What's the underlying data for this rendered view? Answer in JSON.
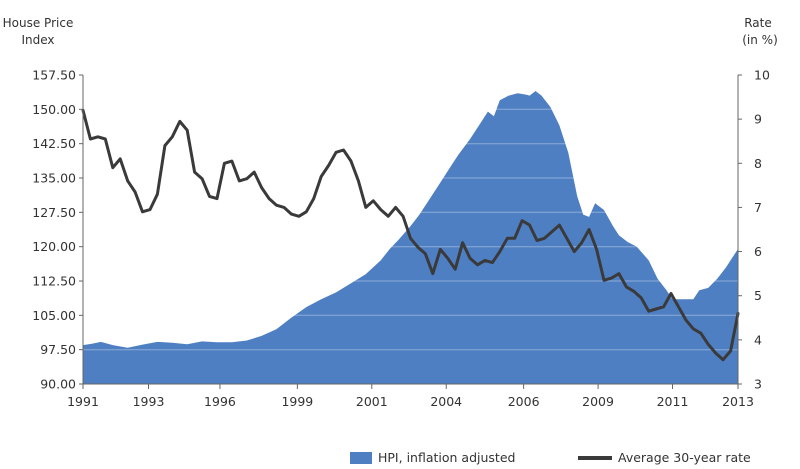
{
  "chart_data": {
    "type": "area-line-combo",
    "title": "",
    "left_axis": {
      "title_line1": "House Price",
      "title_line2": "Index",
      "ylim": [
        90,
        157.5
      ],
      "ticks": [
        "157.50",
        "150.00",
        "142.50",
        "135.00",
        "127.50",
        "120.00",
        "112.50",
        "105.00",
        "97.50",
        "90.00"
      ]
    },
    "right_axis": {
      "title_line1": "Rate",
      "title_line2": "(in %)",
      "ylim": [
        3,
        10
      ],
      "ticks": [
        "10",
        "9",
        "8",
        "7",
        "6",
        "5",
        "4",
        "3"
      ]
    },
    "x_axis": {
      "xlim": [
        1991,
        2013
      ],
      "ticks": [
        {
          "label": "1991",
          "value": 1991
        },
        {
          "label": "1993",
          "value": 1993.2
        },
        {
          "label": "1996",
          "value": 1995.6
        },
        {
          "label": "1999",
          "value": 1998.2
        },
        {
          "label": "2001",
          "value": 2000.7
        },
        {
          "label": "2004",
          "value": 2003.2
        },
        {
          "label": "2006",
          "value": 2005.8
        },
        {
          "label": "2009",
          "value": 2008.3
        },
        {
          "label": "2011",
          "value": 2010.8
        },
        {
          "label": "2013",
          "value": 2013
        }
      ]
    },
    "series": [
      {
        "name": "HPI, inflation adjusted",
        "kind": "area",
        "axis": "left",
        "color": "#4f7fc3",
        "x": [
          1991,
          1991.3,
          1991.6,
          1992,
          1992.5,
          1993,
          1993.5,
          1994,
          1994.5,
          1995,
          1995.5,
          1996,
          1996.5,
          1997,
          1997.5,
          1998,
          1998.5,
          1999,
          1999.5,
          2000,
          2000.5,
          2001,
          2001.3,
          2001.6,
          2002,
          2002.3,
          2002.6,
          2003,
          2003.3,
          2003.6,
          2004,
          2004.3,
          2004.6,
          2004.8,
          2005,
          2005.3,
          2005.6,
          2005.9,
          2006,
          2006.2,
          2006.4,
          2006.7,
          2007,
          2007.3,
          2007.6,
          2007.8,
          2008,
          2008.2,
          2008.5,
          2008.8,
          2009,
          2009.3,
          2009.6,
          2010,
          2010.3,
          2010.6,
          2010.8,
          2011.2,
          2011.5,
          2011.7,
          2012,
          2012.3,
          2012.6,
          2012.8,
          2013
        ],
        "values": [
          98.5,
          98.8,
          99.2,
          98.5,
          97.9,
          98.6,
          99.2,
          99.0,
          98.7,
          99.3,
          99.1,
          99.1,
          99.5,
          100.5,
          102.0,
          104.5,
          106.8,
          108.5,
          110.0,
          112.0,
          114.0,
          117.0,
          119.5,
          121.5,
          124.5,
          127.0,
          130.0,
          134.0,
          137.0,
          140.0,
          143.5,
          146.5,
          149.5,
          148.5,
          152.0,
          153.0,
          153.5,
          153.2,
          153.0,
          154.0,
          153.0,
          150.5,
          146.5,
          140.5,
          131.0,
          127.0,
          126.5,
          129.5,
          128.0,
          124.5,
          122.5,
          121.0,
          120.0,
          117.0,
          113.0,
          110.5,
          108.5,
          108.5,
          108.5,
          110.5,
          111.0,
          113.0,
          115.5,
          117.5,
          119.5
        ]
      },
      {
        "name": "Average 30-year rate",
        "kind": "line",
        "axis": "right",
        "color": "#3a3a3a",
        "x": [
          1991,
          1991.25,
          1991.5,
          1991.75,
          1992,
          1992.25,
          1992.5,
          1992.75,
          1993,
          1993.25,
          1993.5,
          1993.75,
          1994,
          1994.25,
          1994.5,
          1994.75,
          1995,
          1995.25,
          1995.5,
          1995.75,
          1996,
          1996.25,
          1996.5,
          1996.75,
          1997,
          1997.25,
          1997.5,
          1997.75,
          1998,
          1998.25,
          1998.5,
          1998.75,
          1999,
          1999.25,
          1999.5,
          1999.75,
          2000,
          2000.25,
          2000.5,
          2000.75,
          2001,
          2001.25,
          2001.5,
          2001.75,
          2002,
          2002.25,
          2002.5,
          2002.75,
          2003,
          2003.25,
          2003.5,
          2003.75,
          2004,
          2004.25,
          2004.5,
          2004.75,
          2005,
          2005.25,
          2005.5,
          2005.75,
          2006,
          2006.25,
          2006.5,
          2006.75,
          2007,
          2007.25,
          2007.5,
          2007.75,
          2008,
          2008.25,
          2008.5,
          2008.75,
          2009,
          2009.25,
          2009.5,
          2009.75,
          2010,
          2010.25,
          2010.5,
          2010.75,
          2011,
          2011.25,
          2011.5,
          2011.75,
          2012,
          2012.25,
          2012.5,
          2012.75,
          2013
        ],
        "values": [
          9.2,
          8.55,
          8.6,
          8.55,
          7.9,
          8.1,
          7.6,
          7.35,
          6.9,
          6.95,
          7.3,
          8.4,
          8.6,
          8.95,
          8.75,
          7.8,
          7.65,
          7.25,
          7.2,
          8.0,
          8.05,
          7.6,
          7.65,
          7.8,
          7.45,
          7.2,
          7.05,
          7.0,
          6.85,
          6.8,
          6.9,
          7.2,
          7.7,
          7.95,
          8.25,
          8.3,
          8.05,
          7.6,
          7.0,
          7.15,
          6.95,
          6.8,
          7.0,
          6.8,
          6.3,
          6.1,
          5.95,
          5.5,
          6.05,
          5.85,
          5.6,
          6.2,
          5.85,
          5.7,
          5.8,
          5.75,
          6.0,
          6.3,
          6.3,
          6.7,
          6.6,
          6.25,
          6.3,
          6.45,
          6.6,
          6.3,
          6.0,
          6.2,
          6.5,
          6.05,
          5.35,
          5.4,
          5.5,
          5.2,
          5.1,
          4.95,
          4.65,
          4.7,
          4.75,
          5.05,
          4.75,
          4.45,
          4.25,
          4.15,
          3.9,
          3.7,
          3.55,
          3.75,
          4.6
        ]
      }
    ],
    "legend": {
      "placement": "bottom",
      "items": [
        "HPI, inflation adjusted",
        "Average 30-year rate"
      ]
    }
  }
}
